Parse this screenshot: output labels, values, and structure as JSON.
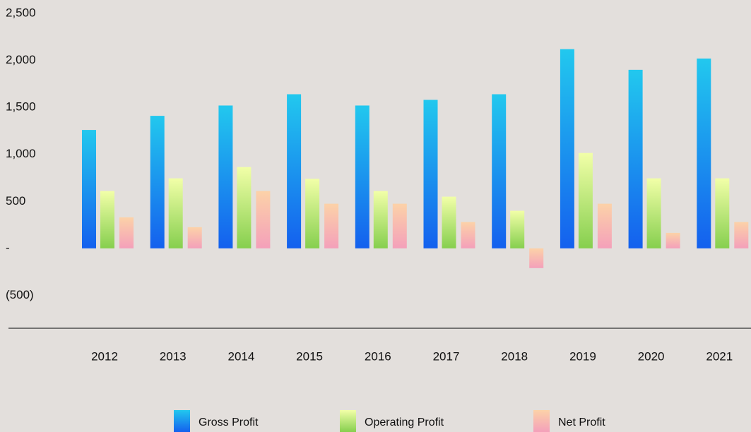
{
  "chart_data": {
    "type": "bar",
    "categories": [
      "2012",
      "2013",
      "2014",
      "2015",
      "2016",
      "2017",
      "2018",
      "2019",
      "2020",
      "2021"
    ],
    "series": [
      {
        "name": "Gross Profit",
        "color": [
          "#22c8ee",
          "#1460ee"
        ],
        "values": [
          1260,
          1410,
          1520,
          1640,
          1520,
          1580,
          1640,
          2120,
          1900,
          2020
        ]
      },
      {
        "name": "Operating Profit",
        "color": [
          "#f2ffa8",
          "#86cf4e"
        ],
        "values": [
          610,
          745,
          865,
          740,
          610,
          550,
          400,
          1015,
          745,
          745
        ]
      },
      {
        "name": "Net Profit",
        "color": [
          "#fcd2a8",
          "#f4a0ba"
        ],
        "values": [
          330,
          225,
          610,
          475,
          475,
          280,
          -210,
          475,
          165,
          280
        ]
      }
    ],
    "ylim": [
      -850,
      2500
    ],
    "yticks": [
      {
        "value": 2500,
        "label": "2,500"
      },
      {
        "value": 2000,
        "label": "2,000"
      },
      {
        "value": 1500,
        "label": "1,500"
      },
      {
        "value": 1000,
        "label": "1,000"
      },
      500,
      {
        "value": 0,
        "label": "-"
      },
      {
        "value": -500,
        "label": "(500)"
      }
    ],
    "legend": "bottom"
  }
}
